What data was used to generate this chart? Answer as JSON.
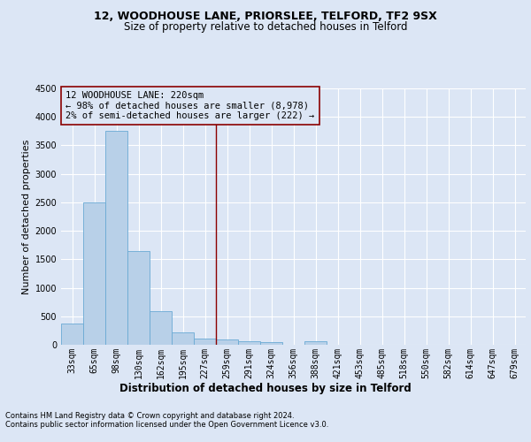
{
  "title1": "12, WOODHOUSE LANE, PRIORSLEE, TELFORD, TF2 9SX",
  "title2": "Size of property relative to detached houses in Telford",
  "xlabel": "Distribution of detached houses by size in Telford",
  "ylabel": "Number of detached properties",
  "categories": [
    "33sqm",
    "65sqm",
    "98sqm",
    "130sqm",
    "162sqm",
    "195sqm",
    "227sqm",
    "259sqm",
    "291sqm",
    "324sqm",
    "356sqm",
    "388sqm",
    "421sqm",
    "453sqm",
    "485sqm",
    "518sqm",
    "550sqm",
    "582sqm",
    "614sqm",
    "647sqm",
    "679sqm"
  ],
  "values": [
    370,
    2500,
    3750,
    1640,
    590,
    220,
    110,
    90,
    55,
    40,
    0,
    55,
    0,
    0,
    0,
    0,
    0,
    0,
    0,
    0,
    0
  ],
  "bar_color": "#b8d0e8",
  "bar_edge_color": "#6aaad4",
  "vline_x_idx": 6,
  "vline_color": "#8b0000",
  "annotation_box_text": "12 WOODHOUSE LANE: 220sqm\n← 98% of detached houses are smaller (8,978)\n2% of semi-detached houses are larger (222) →",
  "annotation_box_color": "#8b0000",
  "ylim": [
    0,
    4500
  ],
  "yticks": [
    0,
    500,
    1000,
    1500,
    2000,
    2500,
    3000,
    3500,
    4000,
    4500
  ],
  "bg_color": "#dce6f5",
  "plot_bg_color": "#dce6f5",
  "footer_line1": "Contains HM Land Registry data © Crown copyright and database right 2024.",
  "footer_line2": "Contains public sector information licensed under the Open Government Licence v3.0.",
  "title1_fontsize": 9,
  "title2_fontsize": 8.5,
  "ylabel_fontsize": 8,
  "xlabel_fontsize": 8.5,
  "tick_fontsize": 7,
  "annotation_fontsize": 7.5,
  "footer_fontsize": 6
}
